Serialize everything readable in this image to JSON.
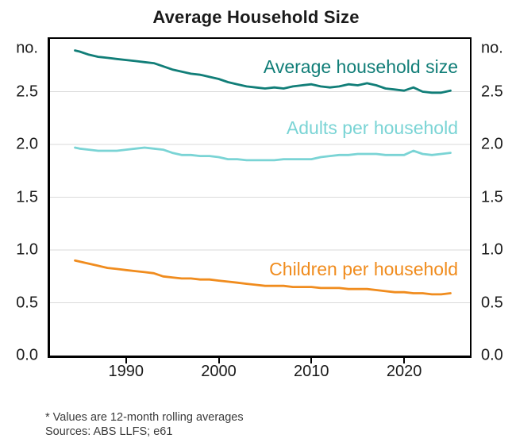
{
  "title": "Average Household Size",
  "footnote": {
    "line1": "* Values are 12-month rolling averages",
    "line2": "Sources: ABS LLFS; e61"
  },
  "colors": {
    "dark_teal": "#117E78",
    "light_teal": "#7AD4D5",
    "orange": "#F08C1E",
    "gridline": "#DADADA",
    "axis": "#000000",
    "text": "#1A1A1A",
    "footnote_text": "#3A3A3A"
  },
  "chart_data": {
    "type": "line",
    "title": "Average Household Size",
    "unit_label": "no.",
    "xlabel": "",
    "ylabel": "no.",
    "xlim": [
      1981.8,
      2027.1
    ],
    "ylim": [
      0,
      3
    ],
    "grid": "horizontal",
    "legend_position": "inline-labels",
    "x_ticks": [
      1990,
      2000,
      2010,
      2020
    ],
    "x_tick_labels": [
      "1990",
      "2000",
      "2010",
      "2020"
    ],
    "y_ticks": [
      0.0,
      0.5,
      1.0,
      1.5,
      2.0,
      2.5
    ],
    "y_tick_labels": [
      "0.0",
      "0.5",
      "1.0",
      "1.5",
      "2.0",
      "2.5"
    ],
    "x": [
      1984.5,
      1985,
      1986,
      1987,
      1988,
      1989,
      1990,
      1991,
      1992,
      1993,
      1994,
      1995,
      1996,
      1997,
      1998,
      1999,
      2000,
      2001,
      2002,
      2003,
      2004,
      2005,
      2006,
      2007,
      2008,
      2009,
      2010,
      2011,
      2012,
      2013,
      2014,
      2015,
      2016,
      2017,
      2018,
      2019,
      2020,
      2021,
      2022,
      2023,
      2024,
      2025
    ],
    "series": [
      {
        "name": "Average household size",
        "color": "#117E78",
        "values": [
          2.89,
          2.88,
          2.85,
          2.83,
          2.82,
          2.81,
          2.8,
          2.79,
          2.78,
          2.77,
          2.74,
          2.71,
          2.69,
          2.67,
          2.66,
          2.64,
          2.62,
          2.59,
          2.57,
          2.55,
          2.54,
          2.53,
          2.54,
          2.53,
          2.55,
          2.56,
          2.57,
          2.55,
          2.54,
          2.55,
          2.57,
          2.56,
          2.58,
          2.56,
          2.53,
          2.52,
          2.51,
          2.54,
          2.5,
          2.49,
          2.49,
          2.51
        ]
      },
      {
        "name": "Adults per household",
        "color": "#7AD4D5",
        "values": [
          1.97,
          1.96,
          1.95,
          1.94,
          1.94,
          1.94,
          1.95,
          1.96,
          1.97,
          1.96,
          1.95,
          1.92,
          1.9,
          1.9,
          1.89,
          1.89,
          1.88,
          1.86,
          1.86,
          1.85,
          1.85,
          1.85,
          1.85,
          1.86,
          1.86,
          1.86,
          1.86,
          1.88,
          1.89,
          1.9,
          1.9,
          1.91,
          1.91,
          1.91,
          1.9,
          1.9,
          1.9,
          1.94,
          1.91,
          1.9,
          1.91,
          1.92
        ]
      },
      {
        "name": "Children per household",
        "color": "#F08C1E",
        "values": [
          0.9,
          0.89,
          0.87,
          0.85,
          0.83,
          0.82,
          0.81,
          0.8,
          0.79,
          0.78,
          0.75,
          0.74,
          0.73,
          0.73,
          0.72,
          0.72,
          0.71,
          0.7,
          0.69,
          0.68,
          0.67,
          0.66,
          0.66,
          0.66,
          0.65,
          0.65,
          0.65,
          0.64,
          0.64,
          0.64,
          0.63,
          0.63,
          0.63,
          0.62,
          0.61,
          0.6,
          0.6,
          0.59,
          0.59,
          0.58,
          0.58,
          0.59
        ]
      }
    ]
  }
}
